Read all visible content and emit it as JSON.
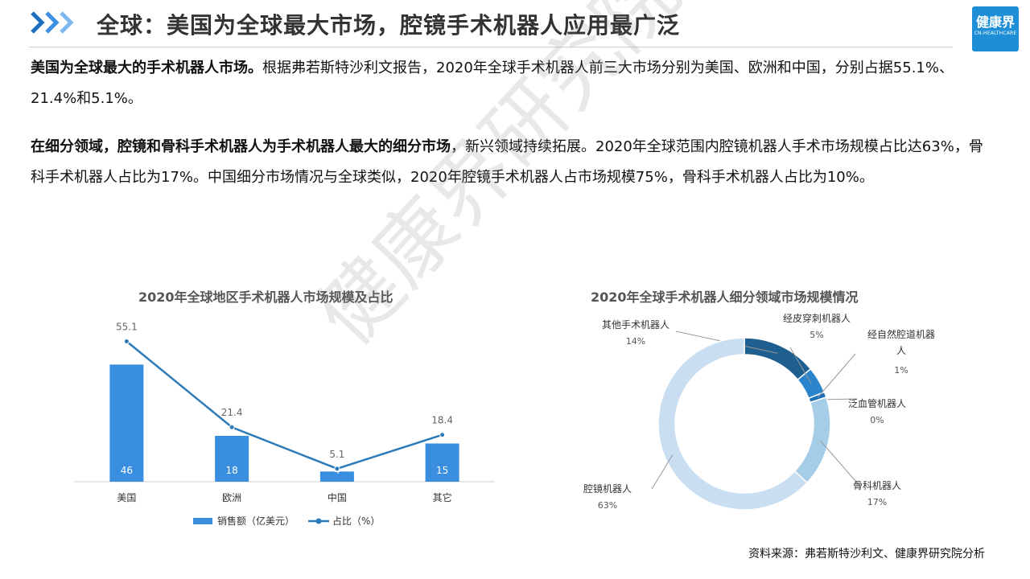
{
  "header": {
    "title": "全球：美国为全球最大市场，腔镜手术机器人应用最广泛",
    "logo_text": "健康界",
    "logo_subtext": "CN-HEALTHCARE",
    "icon": "triple-chevron-icon"
  },
  "paragraphs": [
    {
      "bold": "美国为全球最大的手术机器人市场。",
      "text": "根据弗若斯特沙利文报告，2020年全球手术机器人前三大市场分别为美国、欧洲和中国，分别占据55.1%、21.4%和5.1%。"
    },
    {
      "bold": "在细分领域，腔镜和骨科手术机器人为手术机器人最大的细分市场",
      "text": "，新兴领域持续拓展。2020年全球范围内腔镜机器人手术市场规模占比达63%，骨科手术机器人占比为17%。中国细分市场情况与全球类似，2020年腔镜手术机器人占市场规模75%，骨科手术机器人占比为10%。"
    }
  ],
  "watermark": "健康界研究院",
  "source": "资料来源：弗若斯特沙利文、健康界研究院分析",
  "colors": {
    "bar": "#3a8ee0",
    "line": "#2d7ab8",
    "donut": [
      "#1f5f8f",
      "#2a85cc",
      "#1a6fb6",
      "#6ba9dd",
      "#a6cde8",
      "#c9dff1"
    ]
  },
  "chart_data": [
    {
      "type": "bar",
      "title": "2020年全球地区手术机器人市场规模及占比",
      "categories": [
        "美国",
        "欧洲",
        "中国",
        "其它"
      ],
      "series": [
        {
          "name": "销售额（亿美元）",
          "type": "bar",
          "values": [
            46,
            18,
            4,
            15
          ]
        },
        {
          "name": "占比（%）",
          "type": "line",
          "values": [
            55.1,
            21.4,
            5.1,
            18.4
          ]
        }
      ],
      "ylim": [
        0,
        60
      ],
      "legend": "bottom",
      "grid": false
    },
    {
      "type": "pie",
      "title": "2020年全球手术机器人细分领域市场规模情况",
      "donut": true,
      "slices": [
        {
          "label": "其他手术机器人",
          "value": 14,
          "display": "14%"
        },
        {
          "label": "经皮穿刺机器人",
          "value": 5,
          "display": "5%"
        },
        {
          "label": "经自然腔道机器人",
          "value": 1,
          "display": "1%"
        },
        {
          "label": "泛血管机器人",
          "value": 0,
          "display": "0%"
        },
        {
          "label": "骨科机器人",
          "value": 17,
          "display": "17%"
        },
        {
          "label": "腔镜机器人",
          "value": 63,
          "display": "63%"
        }
      ]
    }
  ]
}
